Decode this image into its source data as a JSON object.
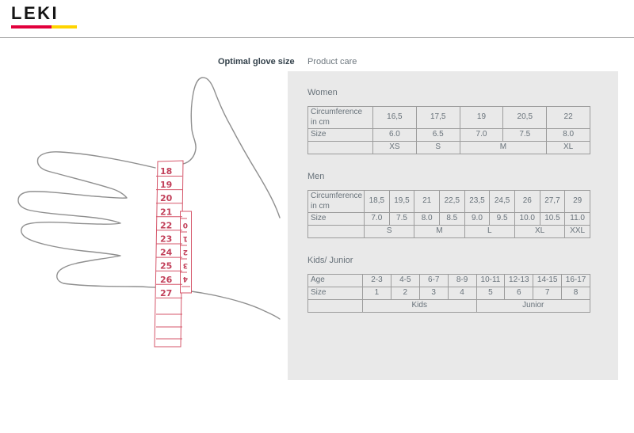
{
  "header": {
    "logo_text": "LEKI",
    "brand_red": "#e2003c",
    "brand_yellow": "#ffd400"
  },
  "tabs": [
    {
      "label": "Optimal glove size",
      "active": true
    },
    {
      "label": "Product care",
      "active": false
    }
  ],
  "illustration": {
    "tape_color": "#d5566a",
    "tape_number_color": "#c2405a",
    "hand_outline_color": "#8f8f8f",
    "tape_main_numbers": [
      "18",
      "19",
      "20",
      "21",
      "22",
      "23",
      "24",
      "25",
      "26",
      "27"
    ],
    "tape_small_numbers": [
      "0",
      "1",
      "2",
      "3",
      "4"
    ]
  },
  "size_tables": [
    {
      "title": "Women",
      "rows": [
        {
          "label": "Circumference in cm",
          "values": [
            "16,5",
            "17,5",
            "19",
            "20,5",
            "22"
          ]
        },
        {
          "label": "Size",
          "values": [
            "6.0",
            "6.5",
            "7.0",
            "7.5",
            "8.0"
          ]
        }
      ],
      "groups": [
        {
          "label": "XS",
          "span": 1
        },
        {
          "label": "S",
          "span": 1
        },
        {
          "label": "M",
          "span": 2
        },
        {
          "label": "XL",
          "span": 1
        }
      ]
    },
    {
      "title": "Men",
      "rows": [
        {
          "label": "Circumference in cm",
          "values": [
            "18,5",
            "19,5",
            "21",
            "22,5",
            "23,5",
            "24,5",
            "26",
            "27,7",
            "29"
          ]
        },
        {
          "label": "Size",
          "values": [
            "7.0",
            "7.5",
            "8.0",
            "8.5",
            "9.0",
            "9.5",
            "10.0",
            "10.5",
            "11.0"
          ]
        }
      ],
      "groups": [
        {
          "label": "S",
          "span": 2
        },
        {
          "label": "M",
          "span": 2
        },
        {
          "label": "L",
          "span": 2
        },
        {
          "label": "XL",
          "span": 2
        },
        {
          "label": "XXL",
          "span": 1
        }
      ]
    },
    {
      "title": "Kids/ Junior",
      "rows": [
        {
          "label": "Age",
          "values": [
            "2-3",
            "4-5",
            "6-7",
            "8-9",
            "10-11",
            "12-13",
            "14-15",
            "16-17"
          ]
        },
        {
          "label": "Size",
          "values": [
            "1",
            "2",
            "3",
            "4",
            "5",
            "6",
            "7",
            "8"
          ]
        }
      ],
      "groups": [
        {
          "label": "Kids",
          "span": 4
        },
        {
          "label": "Junior",
          "span": 4
        }
      ]
    }
  ]
}
